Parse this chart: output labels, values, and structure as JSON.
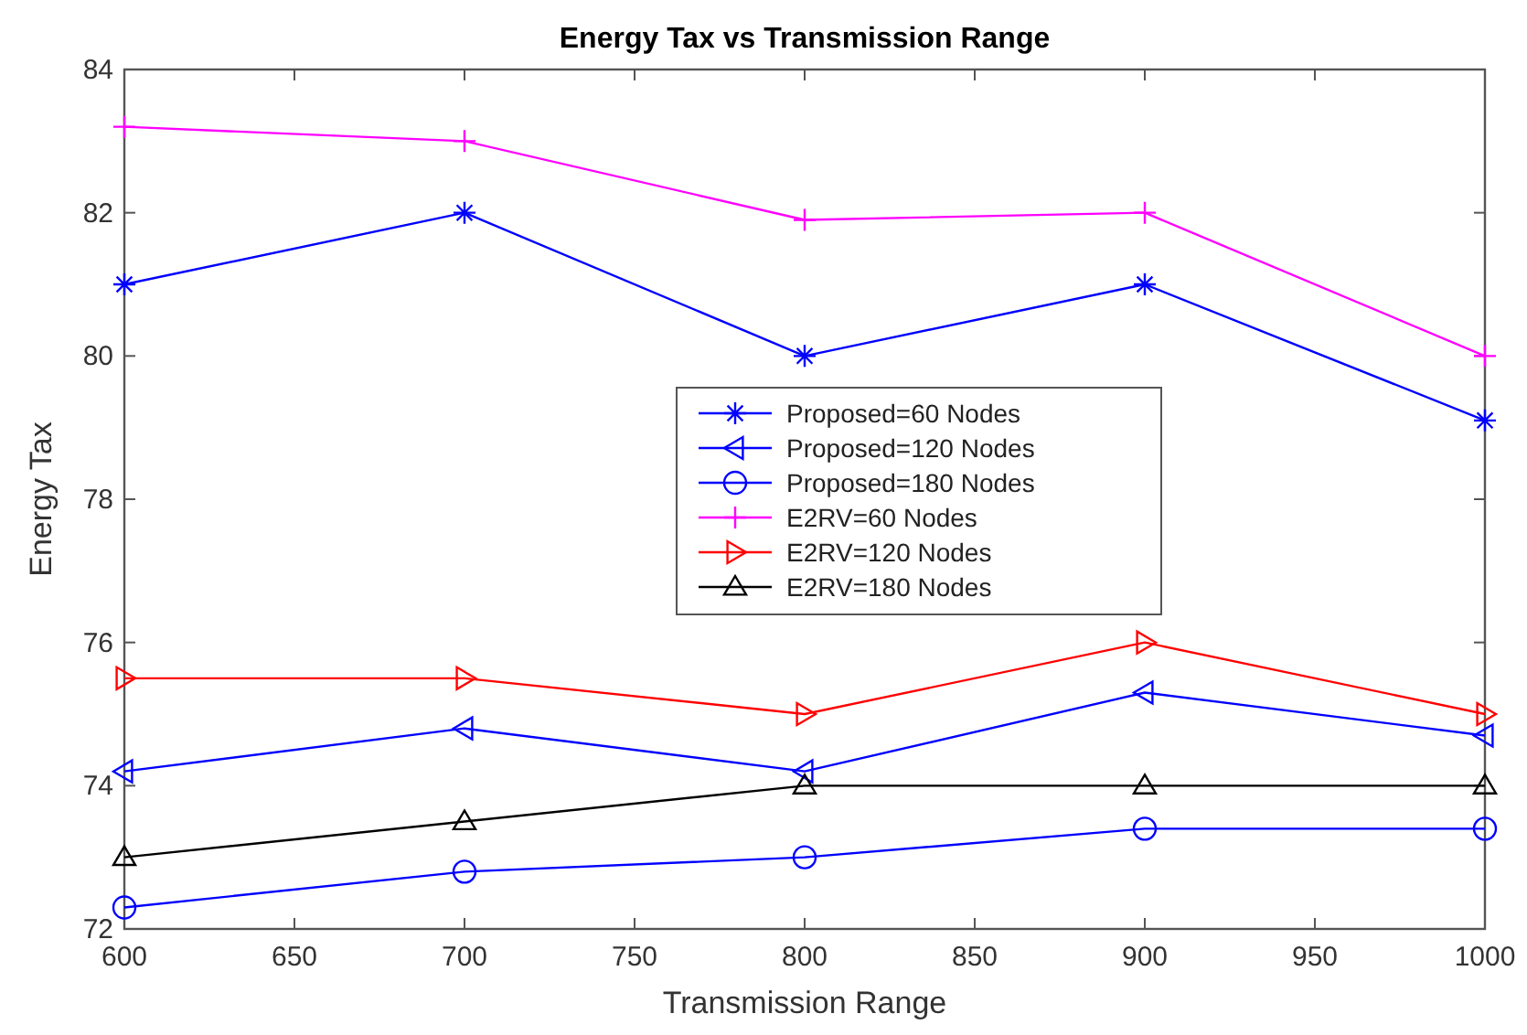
{
  "chart_data": {
    "type": "line",
    "title": "Energy Tax vs Transmission Range",
    "xlabel": "Transmission Range",
    "ylabel": "Energy Tax",
    "x": [
      600,
      700,
      800,
      900,
      1000
    ],
    "xlim": [
      600,
      1000
    ],
    "xticks": [
      600,
      650,
      700,
      750,
      800,
      850,
      900,
      950,
      1000
    ],
    "ylim": [
      72,
      84
    ],
    "yticks": [
      72,
      74,
      76,
      78,
      80,
      82,
      84
    ],
    "grid": false,
    "legend": "right",
    "series": [
      {
        "name": "Proposed=60 Nodes",
        "color": "#0000ff",
        "marker": "cross",
        "values": [
          81,
          82,
          80,
          81,
          79.1
        ]
      },
      {
        "name": "Proposed=120 Nodes",
        "color": "#0000ff",
        "marker": "triangle-left",
        "values": [
          74.2,
          74.8,
          74.2,
          75.3,
          74.7
        ]
      },
      {
        "name": "Proposed=180 Nodes",
        "color": "#0000ff",
        "marker": "circle",
        "values": [
          72.3,
          72.8,
          73.0,
          73.4,
          73.4
        ]
      },
      {
        "name": "E2RV=60 Nodes",
        "color": "#ff00ff",
        "marker": "plus",
        "values": [
          83.2,
          83.0,
          81.9,
          82.0,
          80.0
        ]
      },
      {
        "name": "E2RV=120 Nodes",
        "color": "#ff0000",
        "marker": "triangle-right",
        "values": [
          75.5,
          75.5,
          75.0,
          76.0,
          75.0
        ]
      },
      {
        "name": "E2RV=180 Nodes",
        "color": "#000000",
        "marker": "triangle",
        "values": [
          73.0,
          73.5,
          74.0,
          74.0,
          74.0
        ]
      }
    ]
  }
}
